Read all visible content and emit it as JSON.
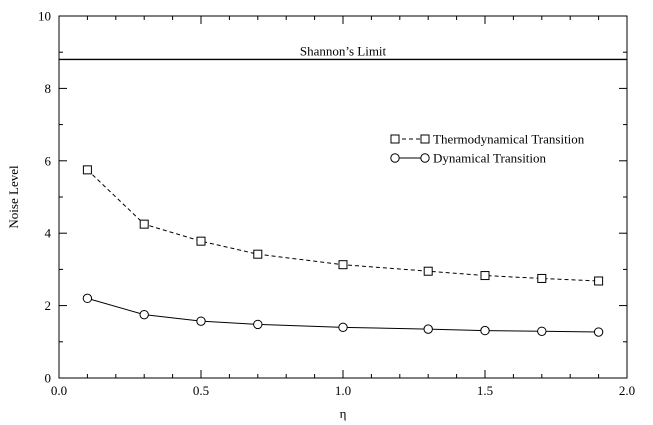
{
  "chart_data": {
    "type": "line",
    "xlabel": "η",
    "ylabel": "Noise Level",
    "xlim": [
      0.0,
      2.0
    ],
    "ylim": [
      0,
      10
    ],
    "x_ticks": [
      0.0,
      0.5,
      1.0,
      1.5,
      2.0
    ],
    "x_tick_labels": [
      "0.0",
      "0.5",
      "1.0",
      "1.5",
      "2.0"
    ],
    "y_ticks": [
      0,
      2,
      4,
      6,
      8,
      10
    ],
    "y_tick_labels": [
      "0",
      "2",
      "4",
      "6",
      "8",
      "10"
    ],
    "grid": false,
    "legend_position": "right",
    "reference_line": {
      "label": "Shannon’s Limit",
      "y": 8.8
    },
    "series": [
      {
        "name": "Thermodynamical Transition",
        "line_style": "dashed",
        "marker": "square",
        "color": "#000000",
        "x": [
          0.1,
          0.3,
          0.5,
          0.7,
          1.0,
          1.3,
          1.5,
          1.7,
          1.9
        ],
        "y": [
          5.75,
          4.25,
          3.78,
          3.42,
          3.13,
          2.95,
          2.83,
          2.75,
          2.68
        ]
      },
      {
        "name": "Dynamical Transition",
        "line_style": "solid",
        "marker": "circle",
        "color": "#000000",
        "x": [
          0.1,
          0.3,
          0.5,
          0.7,
          1.0,
          1.3,
          1.5,
          1.7,
          1.9
        ],
        "y": [
          2.2,
          1.75,
          1.57,
          1.48,
          1.4,
          1.35,
          1.31,
          1.29,
          1.27
        ]
      }
    ]
  }
}
